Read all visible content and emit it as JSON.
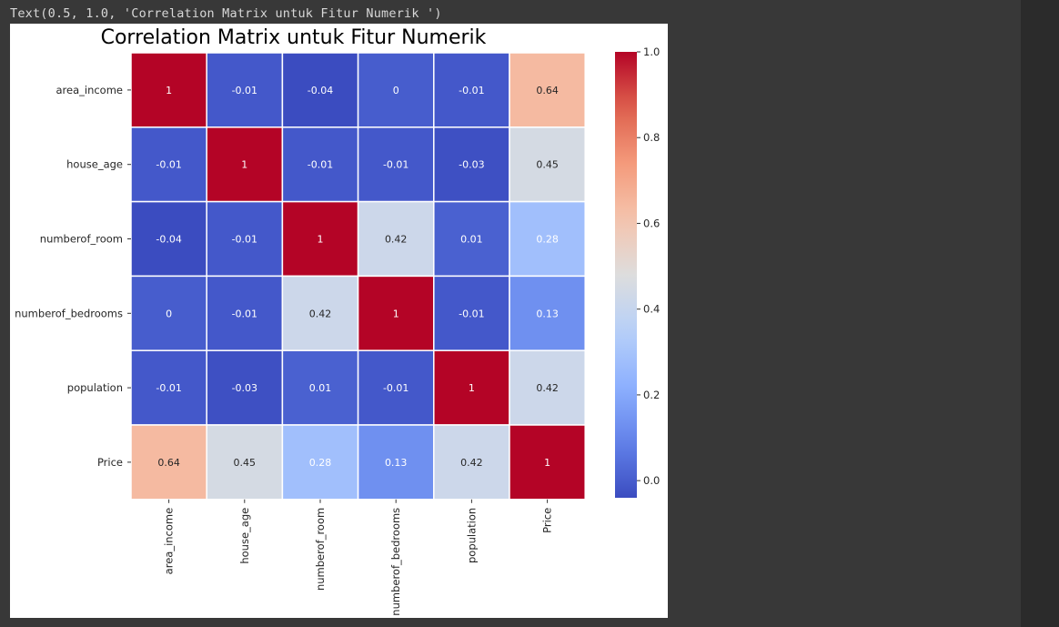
{
  "output_line": "Text(0.5, 1.0, 'Correlation Matrix untuk Fitur Numerik ')",
  "chart_data": {
    "type": "heatmap",
    "title": "Correlation Matrix untuk Fitur Numerik",
    "xlabel": "",
    "ylabel": "",
    "labels": [
      "area_income",
      "house_age",
      "numberof_room",
      "numberof_bedrooms",
      "population",
      "Price"
    ],
    "matrix": [
      [
        1,
        -0.01,
        -0.04,
        0,
        -0.01,
        0.64
      ],
      [
        -0.01,
        1,
        -0.01,
        -0.01,
        -0.03,
        0.45
      ],
      [
        -0.04,
        -0.01,
        1,
        0.42,
        0.01,
        0.28
      ],
      [
        0,
        -0.01,
        0.42,
        1,
        -0.01,
        0.13
      ],
      [
        -0.01,
        -0.03,
        0.01,
        -0.01,
        1,
        0.42
      ],
      [
        0.64,
        0.45,
        0.28,
        0.13,
        0.42,
        1
      ]
    ],
    "annotations": [
      [
        "1",
        "-0.01",
        "-0.04",
        "0",
        "-0.01",
        "0.64"
      ],
      [
        "-0.01",
        "1",
        "-0.01",
        "-0.01",
        "-0.03",
        "0.45"
      ],
      [
        "-0.04",
        "-0.01",
        "1",
        "0.42",
        "0.01",
        "0.28"
      ],
      [
        "0",
        "-0.01",
        "0.42",
        "1",
        "-0.01",
        "0.13"
      ],
      [
        "-0.01",
        "-0.03",
        "0.01",
        "-0.01",
        "1",
        "0.42"
      ],
      [
        "0.64",
        "0.45",
        "0.28",
        "0.13",
        "0.42",
        "1"
      ]
    ],
    "colormap": "coolwarm",
    "vmin": -0.04,
    "vmax": 1.0,
    "colorbar_ticks": [
      "0.0",
      "0.2",
      "0.4",
      "0.6",
      "0.8",
      "1.0"
    ],
    "colorbar_tick_values": [
      0.0,
      0.2,
      0.4,
      0.6,
      0.8,
      1.0
    ],
    "grid": false,
    "cell_separator_color": "#ffffff"
  }
}
